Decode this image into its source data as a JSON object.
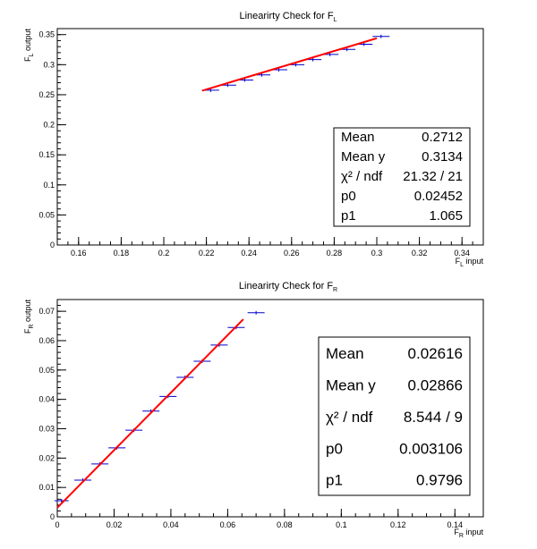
{
  "chart_data": [
    {
      "type": "scatter",
      "title": "Linearirty Check for F",
      "title_sub": "L",
      "xlabel": "F",
      "xlabel_sub": "L",
      "xlabel_suffix": " input",
      "ylabel": "F",
      "ylabel_sub": "L",
      "ylabel_suffix": " output",
      "xlim": [
        0.15,
        0.35
      ],
      "ylim": [
        0,
        0.36
      ],
      "xticks": [
        "0.16",
        "0.18",
        "0.2",
        "0.22",
        "0.24",
        "0.26",
        "0.28",
        "0.3",
        "0.32",
        "0.34"
      ],
      "yticks": [
        "0",
        "0.05",
        "0.1",
        "0.15",
        "0.2",
        "0.25",
        "0.3",
        "0.35"
      ],
      "points": [
        {
          "x": 0.222,
          "y": 0.2575,
          "xerr": 0.004
        },
        {
          "x": 0.23,
          "y": 0.266,
          "xerr": 0.004
        },
        {
          "x": 0.238,
          "y": 0.2745,
          "xerr": 0.004
        },
        {
          "x": 0.246,
          "y": 0.283,
          "xerr": 0.004
        },
        {
          "x": 0.254,
          "y": 0.2915,
          "xerr": 0.004
        },
        {
          "x": 0.262,
          "y": 0.3,
          "xerr": 0.004
        },
        {
          "x": 0.27,
          "y": 0.3085,
          "xerr": 0.004
        },
        {
          "x": 0.278,
          "y": 0.317,
          "xerr": 0.004
        },
        {
          "x": 0.286,
          "y": 0.3255,
          "xerr": 0.004
        },
        {
          "x": 0.294,
          "y": 0.334,
          "xerr": 0.004
        },
        {
          "x": 0.302,
          "y": 0.347,
          "xerr": 0.004
        }
      ],
      "fit": {
        "p0": 0.02452,
        "p1": 1.065,
        "x_range": [
          0.218,
          0.3
        ]
      },
      "stats": [
        {
          "label": "Mean",
          "value": "0.2712"
        },
        {
          "label": "Mean y",
          "value": "0.3134"
        },
        {
          "label": "χ² / ndf",
          "value": "21.32 / 21"
        },
        {
          "label": "p0",
          "value": "0.02452"
        },
        {
          "label": "p1",
          "value": "1.065"
        }
      ],
      "colors": {
        "points": "#0000cc",
        "fit": "#ff0000",
        "axes": "#000000"
      }
    },
    {
      "type": "scatter",
      "title": "Linearirty Check for F",
      "title_sub": "R",
      "xlabel": "F",
      "xlabel_sub": "R",
      "xlabel_suffix": " input",
      "ylabel": "F",
      "ylabel_sub": "R",
      "ylabel_suffix": " output",
      "xlim": [
        0,
        0.15
      ],
      "ylim": [
        0,
        0.074
      ],
      "xticks": [
        "0",
        "0.02",
        "0.04",
        "0.06",
        "0.08",
        "0.1",
        "0.12",
        "0.14"
      ],
      "yticks": [
        "0",
        "0.01",
        "0.02",
        "0.03",
        "0.04",
        "0.05",
        "0.06",
        "0.07"
      ],
      "points": [
        {
          "x": 0.0015,
          "y": 0.0055,
          "xerr": 0.0025
        },
        {
          "x": 0.009,
          "y": 0.0125,
          "xerr": 0.003
        },
        {
          "x": 0.015,
          "y": 0.018,
          "xerr": 0.003
        },
        {
          "x": 0.021,
          "y": 0.0235,
          "xerr": 0.003
        },
        {
          "x": 0.027,
          "y": 0.0295,
          "xerr": 0.003
        },
        {
          "x": 0.033,
          "y": 0.036,
          "xerr": 0.003
        },
        {
          "x": 0.039,
          "y": 0.041,
          "xerr": 0.003
        },
        {
          "x": 0.045,
          "y": 0.0475,
          "xerr": 0.003
        },
        {
          "x": 0.051,
          "y": 0.053,
          "xerr": 0.003
        },
        {
          "x": 0.057,
          "y": 0.0585,
          "xerr": 0.003
        },
        {
          "x": 0.063,
          "y": 0.0645,
          "xerr": 0.003
        },
        {
          "x": 0.07,
          "y": 0.0695,
          "xerr": 0.003
        }
      ],
      "fit": {
        "p0": 0.003106,
        "p1": 0.9796,
        "x_range": [
          0.0,
          0.0655
        ]
      },
      "stats": [
        {
          "label": "Mean",
          "value": "0.02616"
        },
        {
          "label": "Mean y",
          "value": "0.02866"
        },
        {
          "label": "χ² / ndf",
          "value": "8.544 / 9"
        },
        {
          "label": "p0",
          "value": "0.003106"
        },
        {
          "label": "p1",
          "value": "0.9796"
        }
      ],
      "colors": {
        "points": "#0000cc",
        "fit": "#ff0000",
        "axes": "#000000"
      }
    }
  ]
}
